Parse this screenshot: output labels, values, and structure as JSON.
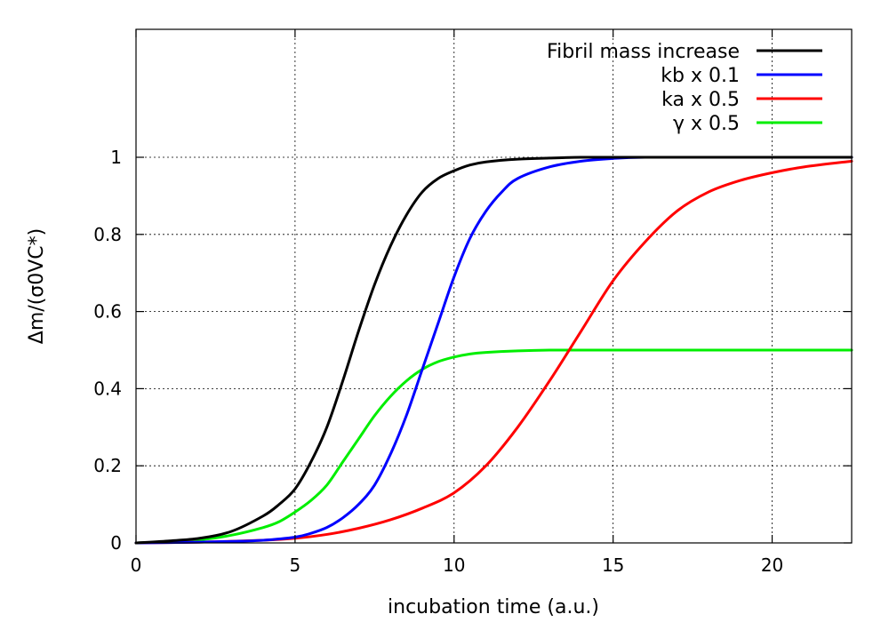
{
  "chart_data": {
    "type": "line",
    "title": "",
    "xlabel": "incubation time (a.u.)",
    "ylabel": "Δm/(σ0VC*)",
    "xlim": [
      0,
      22.5
    ],
    "ylim": [
      0,
      1.35
    ],
    "xticks": [
      0,
      5,
      10,
      15,
      20
    ],
    "yticks": [
      0,
      0.2,
      0.4,
      0.6,
      0.8,
      1
    ],
    "xtick_labels": [
      "0",
      "5",
      "10",
      "15",
      "20"
    ],
    "ytick_labels": [
      "0",
      "0.2",
      "0.4",
      "0.6",
      "0.8",
      "1"
    ],
    "grid": true,
    "legend_position": "top-right",
    "series": [
      {
        "name": "Fibril mass increase",
        "color": "#000000",
        "x": [
          0,
          1,
          2,
          3,
          4,
          4.5,
          5,
          5.5,
          6,
          6.5,
          7,
          7.5,
          8,
          8.5,
          9,
          9.5,
          10,
          10.5,
          11,
          12,
          13,
          14,
          15,
          16,
          18,
          20,
          22.5
        ],
        "y": [
          0,
          0.005,
          0.012,
          0.03,
          0.07,
          0.1,
          0.14,
          0.21,
          0.3,
          0.42,
          0.55,
          0.67,
          0.77,
          0.85,
          0.91,
          0.945,
          0.965,
          0.98,
          0.988,
          0.995,
          0.998,
          1.0,
          1.0,
          1.0,
          1.0,
          1.0,
          1.0
        ]
      },
      {
        "name": "kb x 0.1",
        "color": "#0000ff",
        "x": [
          0,
          2,
          3,
          4,
          5,
          5.5,
          6,
          6.5,
          7,
          7.5,
          8,
          8.5,
          9,
          9.5,
          10,
          10.5,
          11,
          11.5,
          12,
          13,
          14,
          15,
          16,
          18,
          20,
          22.5
        ],
        "y": [
          0,
          0.002,
          0.004,
          0.007,
          0.015,
          0.025,
          0.04,
          0.065,
          0.1,
          0.15,
          0.23,
          0.33,
          0.45,
          0.57,
          0.69,
          0.79,
          0.86,
          0.91,
          0.945,
          0.975,
          0.99,
          0.997,
          1.0,
          1.0,
          1.0,
          1.0
        ]
      },
      {
        "name": "ka x 0.5",
        "color": "#ff0000",
        "x": [
          0,
          2,
          4,
          5,
          6,
          7,
          8,
          9,
          10,
          11,
          12,
          13,
          14,
          15,
          16,
          17,
          18,
          19,
          20,
          21,
          22.5
        ],
        "y": [
          0,
          0.002,
          0.007,
          0.012,
          0.022,
          0.038,
          0.06,
          0.09,
          0.13,
          0.2,
          0.3,
          0.42,
          0.55,
          0.68,
          0.78,
          0.86,
          0.91,
          0.94,
          0.96,
          0.975,
          0.99
        ]
      },
      {
        "name": "γ x 0.5",
        "color": "#00ee00",
        "x": [
          0,
          1,
          2,
          3,
          4,
          4.5,
          5,
          5.5,
          6,
          6.5,
          7,
          7.5,
          8,
          8.5,
          9,
          9.5,
          10,
          10.5,
          11,
          12,
          13,
          14,
          15,
          18,
          22.5
        ],
        "y": [
          0,
          0.003,
          0.008,
          0.02,
          0.04,
          0.055,
          0.08,
          0.11,
          0.15,
          0.21,
          0.27,
          0.33,
          0.38,
          0.42,
          0.45,
          0.47,
          0.482,
          0.49,
          0.494,
          0.498,
          0.5,
          0.5,
          0.5,
          0.5,
          0.5
        ]
      }
    ]
  }
}
